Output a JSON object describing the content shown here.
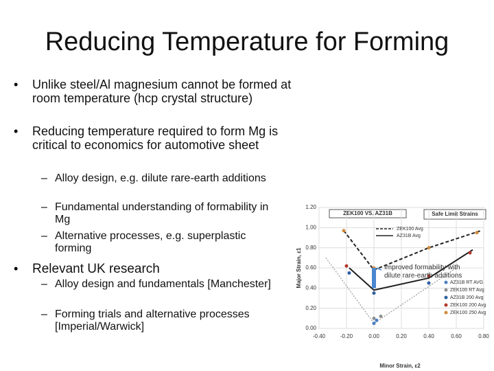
{
  "slide": {
    "title": "Reducing Temperature for Forming",
    "bullets": [
      {
        "level": 1,
        "text": "Unlike steel/Al magnesium cannot be formed at room temperature (hcp crystal structure)"
      },
      {
        "level": 1,
        "text": "Reducing temperature required to form Mg is critical to economics for automotive sheet"
      },
      {
        "level": 2,
        "text": "Alloy design, e.g. dilute rare-earth additions"
      },
      {
        "level": 2,
        "text": "Fundamental understanding of formability in Mg"
      },
      {
        "level": 2,
        "text": "Alternative processes, e.g. superplastic forming"
      },
      {
        "level": 1,
        "text": "Relevant UK research"
      },
      {
        "level": 2,
        "text": "Alloy design and fundamentals [Manchester]"
      },
      {
        "level": 2,
        "text": "Forming trials and alternative processes [Imperial/Warwick]"
      }
    ]
  },
  "chart_data": {
    "type": "line",
    "title": "ZEK100 VS. AZ31B",
    "subtitle": "Safe Limit Strains",
    "x_label": "Minor Strain, ε2",
    "y_label": "Major Strain, ε1",
    "annotation": "Improved formability with dilute rare-earth additions",
    "xlim": [
      -0.4,
      0.8
    ],
    "ylim": [
      0,
      1.2
    ],
    "xticks": [
      {
        "value": -0.4,
        "label": "-0.40"
      },
      {
        "value": -0.2,
        "label": "-0.20"
      },
      {
        "value": 0,
        "label": "0.00"
      },
      {
        "value": 0.2,
        "label": "0.20"
      },
      {
        "value": 0.4,
        "label": "0.40"
      },
      {
        "value": 0.6,
        "label": "0.60"
      },
      {
        "value": 0.8,
        "label": "0.80"
      }
    ],
    "yticks": [
      {
        "value": 0,
        "label": "0.00"
      },
      {
        "value": 0.2,
        "label": "0.20"
      },
      {
        "value": 0.4,
        "label": "0.40"
      },
      {
        "value": 0.6,
        "label": "0.60"
      },
      {
        "value": 0.8,
        "label": "0.80"
      },
      {
        "value": 1,
        "label": "1.00"
      },
      {
        "value": 1.2,
        "label": "1.20"
      }
    ],
    "grid": true,
    "series": [
      {
        "name": "ZEK100 Avg",
        "color": "#222222",
        "style": "dashed",
        "x": [
          -0.22,
          0,
          0.4,
          0.78
        ],
        "values": [
          0.97,
          0.58,
          0.8,
          0.97
        ]
      },
      {
        "name": "AZ31B Avg",
        "color": "#222222",
        "style": "solid",
        "x": [
          -0.18,
          0,
          0.4,
          0.72
        ],
        "values": [
          0.6,
          0.38,
          0.5,
          0.78
        ]
      },
      {
        "name": "AZ31B RT AVG",
        "color": "#4a7fc0",
        "style": "marker",
        "x": [
          0,
          0.02
        ],
        "values": [
          0.05,
          0.08
        ]
      },
      {
        "name": "ZEK100 RT Avg",
        "color": "#909090",
        "style": "marker",
        "x": [
          0,
          0.05
        ],
        "values": [
          0.1,
          0.12
        ]
      },
      {
        "name": "AZ31B 200 Avg",
        "color": "#2d5fa0",
        "style": "marker",
        "x": [
          -0.18,
          0,
          0.4
        ],
        "values": [
          0.55,
          0.35,
          0.45
        ]
      },
      {
        "name": "ZEK100 200 Avg",
        "color": "#b03a2e",
        "style": "marker",
        "x": [
          -0.2,
          0,
          0.4,
          0.7
        ],
        "values": [
          0.62,
          0.42,
          0.52,
          0.75
        ]
      },
      {
        "name": "ZEK100 250 Avg",
        "color": "#d08a3a",
        "style": "marker",
        "x": [
          -0.22,
          0,
          0.4,
          0.75
        ],
        "values": [
          0.97,
          0.6,
          0.8,
          0.95
        ]
      }
    ]
  }
}
